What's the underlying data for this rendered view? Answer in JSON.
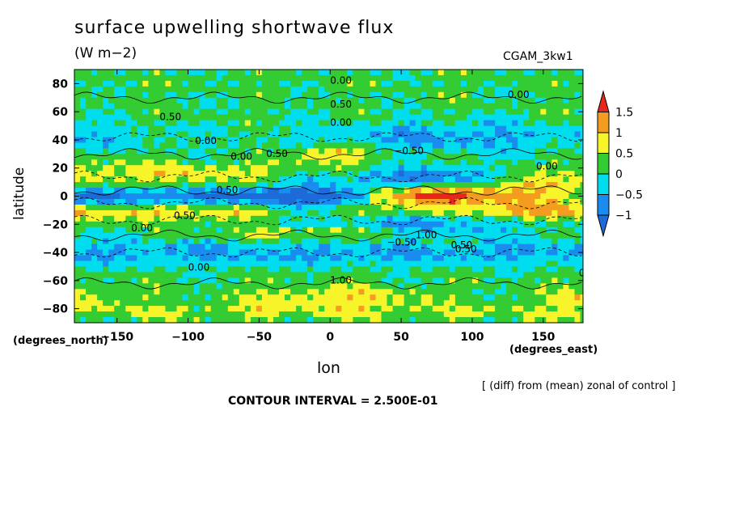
{
  "chart_data": {
    "type": "heatmap",
    "title": "surface upwelling shortwave flux",
    "units": "(W m−2)",
    "run_label": "CGAM_3kw1",
    "xlabel": "lon",
    "ylabel": "latitude",
    "x_units_label": "(degrees_east)",
    "y_units_label": "(degrees_north)",
    "xlim": [
      -180,
      178
    ],
    "ylim": [
      -90,
      90
    ],
    "x_ticks": [
      -150,
      -100,
      -50,
      0,
      50,
      100,
      150
    ],
    "y_ticks": [
      -80,
      -60,
      -40,
      -20,
      0,
      20,
      40,
      60,
      80
    ],
    "x_tick_labels": [
      "−150",
      "−100",
      "−50",
      "0",
      "50",
      "100",
      "150"
    ],
    "y_tick_labels": [
      "−80",
      "−60",
      "−40",
      "−20",
      "0",
      "20",
      "40",
      "60",
      "80"
    ],
    "colorbar": {
      "levels": [
        1.5,
        1,
        0.5,
        0,
        -0.5,
        -1
      ],
      "labels": [
        "1.5",
        "1",
        "0.5",
        "0",
        "−0.5",
        "−1"
      ],
      "colors": [
        "#e8261c",
        "#f39c1f",
        "#f7f42a",
        "#33cc33",
        "#00ddee",
        "#1a8cf0",
        "#1d6ad8"
      ]
    },
    "contour_labels": [
      "0.00",
      "0.50",
      "0.00",
      "0.50",
      "0.00",
      "−0.50",
      "0.50",
      "0.00",
      "0.00",
      "1.00",
      "0.50",
      "0.00",
      "0.50",
      "1.00",
      "0.50",
      "−0.50",
      "0.00",
      "0.50",
      "0.00",
      "0.00"
    ],
    "contour_interval": "CONTOUR INTERVAL = 2.500E-01",
    "note": "[ (diff) from (mean) zonal of control ]"
  }
}
